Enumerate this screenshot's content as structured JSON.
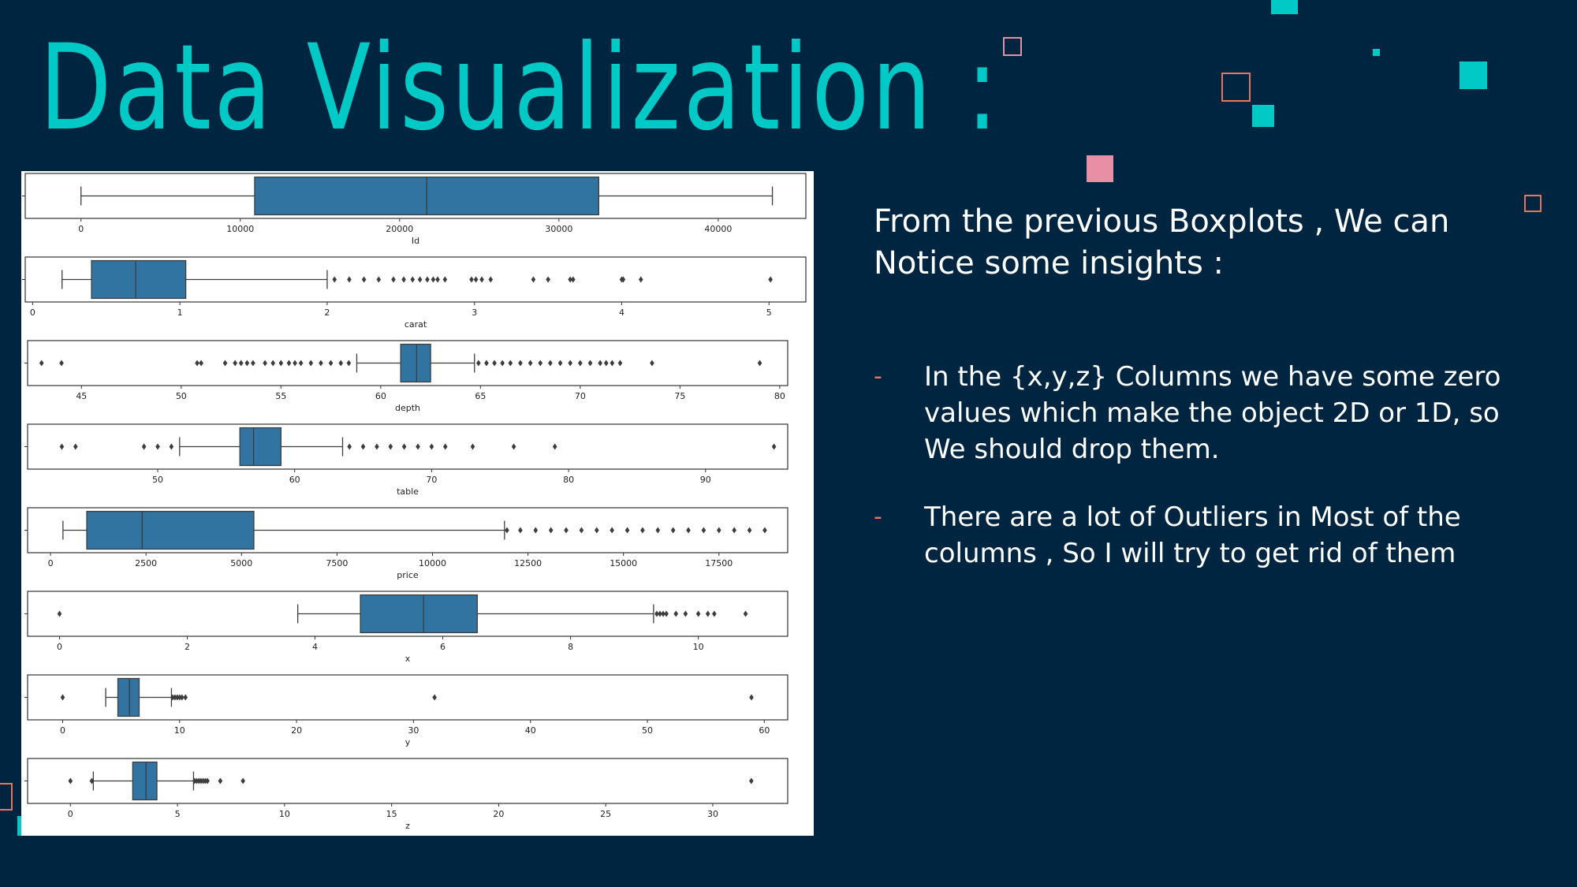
{
  "slide": {
    "title": "Data Visualization :",
    "intro": "From the previous Boxplots , We can Notice some insights :",
    "bullets": [
      "In the {x,y,z} Columns we have some zero values which make the object 2D or 1D, so We should drop them.",
      "There are a lot of Outliers in Most of the columns , So I will try to get rid of them"
    ],
    "bullet_marker": "-"
  },
  "colors": {
    "background": "#002540",
    "accent_teal": "#00c9c6",
    "accent_pink": "#e98fa5",
    "accent_orange": "#e8745a",
    "box_fill": "#3274a1"
  },
  "chart_data": [
    {
      "type": "box",
      "xlabel": "Id",
      "xlim": [
        -3500,
        45500
      ],
      "ticks": [
        0,
        10000,
        20000,
        30000,
        40000
      ],
      "stats": {
        "whisker_low": 0,
        "q1": 10900,
        "median": 21700,
        "q3": 32500,
        "whisker_high": 43400
      },
      "outliers": []
    },
    {
      "type": "box",
      "xlabel": "carat",
      "xlim": [
        -0.05,
        5.25
      ],
      "ticks": [
        0,
        1,
        2,
        3,
        4,
        5
      ],
      "stats": {
        "whisker_low": 0.2,
        "q1": 0.4,
        "median": 0.7,
        "q3": 1.04,
        "whisker_high": 2.0
      },
      "outliers": [
        2.05,
        2.15,
        2.25,
        2.35,
        2.45,
        2.52,
        2.58,
        2.63,
        2.68,
        2.72,
        2.75,
        2.8,
        2.98,
        3.01,
        3.05,
        3.11,
        3.4,
        3.5,
        3.65,
        3.67,
        4.0,
        4.01,
        4.13,
        5.01
      ]
    },
    {
      "type": "box",
      "xlabel": "depth",
      "xlim": [
        42.3,
        80.4
      ],
      "ticks": [
        45,
        50,
        55,
        60,
        65,
        70,
        75,
        80
      ],
      "stats": {
        "whisker_low": 58.8,
        "q1": 61.0,
        "median": 61.8,
        "q3": 62.5,
        "whisker_high": 64.7
      },
      "outliers": [
        43.0,
        44.0,
        50.8,
        51.0,
        52.2,
        52.7,
        53.0,
        53.3,
        53.6,
        54.2,
        54.6,
        55.0,
        55.4,
        55.7,
        56.0,
        56.5,
        57.0,
        57.5,
        58.0,
        58.4,
        64.9,
        65.3,
        65.7,
        66.1,
        66.5,
        67.0,
        67.5,
        68.0,
        68.5,
        69.0,
        69.5,
        70.0,
        70.5,
        71.0,
        71.3,
        71.6,
        72.0,
        73.6,
        79.0
      ]
    },
    {
      "type": "box",
      "xlabel": "table",
      "xlim": [
        40.5,
        96
      ],
      "ticks": [
        50,
        60,
        70,
        80,
        90
      ],
      "stats": {
        "whisker_low": 51.6,
        "q1": 56.0,
        "median": 57.0,
        "q3": 59.0,
        "whisker_high": 63.5
      },
      "outliers": [
        43.0,
        44.0,
        49.0,
        50.0,
        51.0,
        64.0,
        65.0,
        66.0,
        67.0,
        68.0,
        69.0,
        70.0,
        71.0,
        73.0,
        76.0,
        79.0,
        95.0
      ]
    },
    {
      "type": "box",
      "xlabel": "price",
      "xlim": [
        -600,
        19300
      ],
      "ticks": [
        0,
        2500,
        5000,
        7500,
        10000,
        12500,
        15000,
        17500
      ],
      "stats": {
        "whisker_low": 326,
        "q1": 949,
        "median": 2401,
        "q3": 5324,
        "whisker_high": 11885
      },
      "outliers": [
        11950,
        12300,
        12700,
        13100,
        13500,
        13900,
        14300,
        14700,
        15100,
        15500,
        15900,
        16300,
        16700,
        17100,
        17500,
        17900,
        18300,
        18700
      ]
    },
    {
      "type": "box",
      "xlabel": "x",
      "xlim": [
        -0.5,
        11.4
      ],
      "ticks": [
        0,
        2,
        4,
        6,
        8,
        10
      ],
      "stats": {
        "whisker_low": 3.73,
        "q1": 4.71,
        "median": 5.7,
        "q3": 6.54,
        "whisker_high": 9.3
      },
      "outliers": [
        0,
        9.35,
        9.4,
        9.45,
        9.5,
        9.65,
        9.8,
        10.0,
        10.15,
        10.25,
        10.74
      ]
    },
    {
      "type": "box",
      "xlabel": "y",
      "xlim": [
        -3,
        62
      ],
      "ticks": [
        0,
        10,
        20,
        30,
        40,
        50,
        60
      ],
      "stats": {
        "whisker_low": 3.68,
        "q1": 4.72,
        "median": 5.71,
        "q3": 6.54,
        "whisker_high": 9.3
      },
      "outliers": [
        0,
        9.4,
        9.6,
        9.8,
        10.0,
        10.2,
        10.5,
        31.8,
        58.9
      ]
    },
    {
      "type": "box",
      "xlabel": "z",
      "xlim": [
        -2,
        33.5
      ],
      "ticks": [
        0,
        5,
        10,
        15,
        20,
        25,
        30
      ],
      "stats": {
        "whisker_low": 1.07,
        "q1": 2.91,
        "median": 3.53,
        "q3": 4.04,
        "whisker_high": 5.75
      },
      "outliers": [
        0,
        1.0,
        5.8,
        5.9,
        6.0,
        6.1,
        6.2,
        6.3,
        6.4,
        7.0,
        8.06,
        31.8
      ]
    }
  ]
}
